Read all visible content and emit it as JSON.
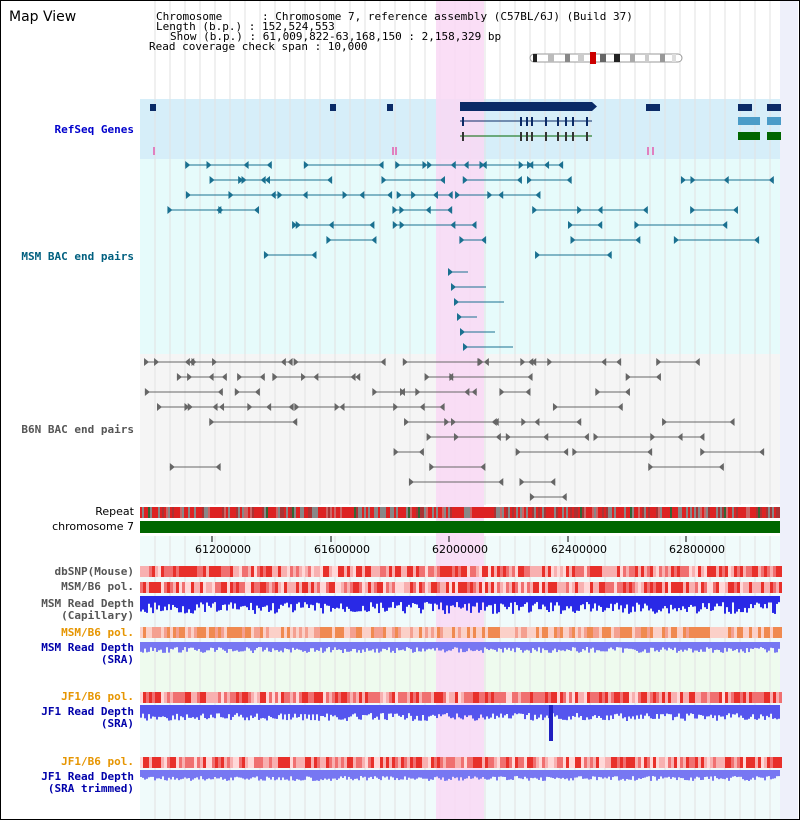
{
  "window": {
    "title": "Map View"
  },
  "info": {
    "chromosome": "Chromosome      : Chromosome 7, reference assembly (C57BL/6J) (Build 37)",
    "length": "Length (b.p.) : 152,524,553",
    "show": "Show (b.p.) : 61,009,822-63,168,150 : 2,158,329 bp",
    "coverage": "Read coverage check span : 10,000"
  },
  "tracks": {
    "refseq": "RefSeq Genes",
    "msm_bac": "MSM BAC end pairs",
    "b6n_bac": "B6N BAC end pairs",
    "repeat": "Repeat",
    "chromosome": "chromosome 7",
    "dbsnp": "dbSNP(Mouse)",
    "msm_pol_1": "MSM/B6 pol.",
    "msm_depth_cap": "MSM Read Depth\n(Capillary)",
    "msm_pol_2": "MSM/B6 pol.",
    "msm_depth_sra": "MSM Read Depth\n(SRA)",
    "jf1_pol_1": "JF1/B6 pol.",
    "jf1_depth_sra": "JF1 Read Depth\n(SRA)",
    "jf1_pol_2": "JF1/B6 pol.",
    "jf1_depth_trim": "JF1 Read Depth\n(SRA trimmed)"
  },
  "axis": {
    "ticks": [
      "61200000",
      "61600000",
      "62000000",
      "62400000",
      "62800000"
    ]
  },
  "colors": {
    "refseq_label": "#0000cc",
    "msm_label": "#005f7f",
    "b6n_label": "#555555",
    "pol_label": "#e69500",
    "highlight": "#f9d8f4",
    "refseq_bg": "#d6eef9",
    "msm_bg": "#e6fbfb",
    "b6n_bg": "#f5f5f5",
    "chromosome": "#006600",
    "gene_dark": "#0a2a66",
    "depth_blue": "#2929e6",
    "depth_light": "#7777f2"
  },
  "icons": [
    "chromosome-ideogram-icon",
    "strand-arrow-icon"
  ]
}
